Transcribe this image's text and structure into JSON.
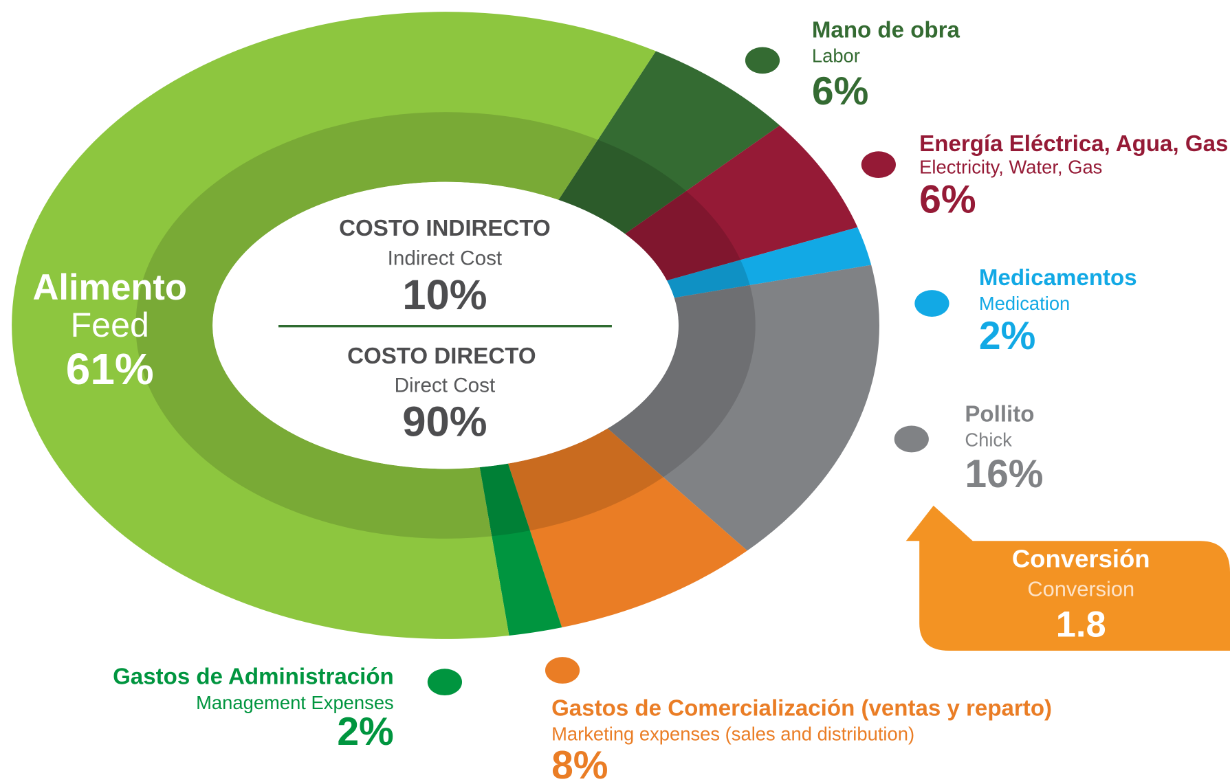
{
  "chart_data": {
    "type": "pie",
    "donut": true,
    "categories": [
      "Mano de obra",
      "Energía Eléctrica, Agua, Gas",
      "Medicamentos",
      "Pollito",
      "Gastos de Comercialización (ventas y reparto)",
      "Gastos de Administración",
      "Alimento"
    ],
    "subcategories": [
      "Labor",
      "Electricity, Water, Gas",
      "Medication",
      "Chick",
      "Marketing expenses (sales and distribution)",
      "Management Expenses",
      "Feed"
    ],
    "values": [
      6,
      6,
      2,
      16,
      8,
      2,
      61
    ],
    "value_labels": [
      "6%",
      "6%",
      "2%",
      "16%",
      "8%",
      "2%",
      "61%"
    ],
    "colors": [
      "#346b32",
      "#951a36",
      "#12a9e5",
      "#808285",
      "#ea7d25",
      "#00953f",
      "#8dc63f"
    ],
    "center": [
      {
        "title": "COSTO INDIRECTO",
        "subtitle": "Indirect Cost",
        "label": "10%"
      },
      {
        "title": "COSTO DIRECTO",
        "subtitle": "Direct Cost",
        "label": "90%"
      }
    ],
    "callout": {
      "title": "Conversión",
      "subtitle": "Conversion",
      "label": "1.8"
    }
  }
}
